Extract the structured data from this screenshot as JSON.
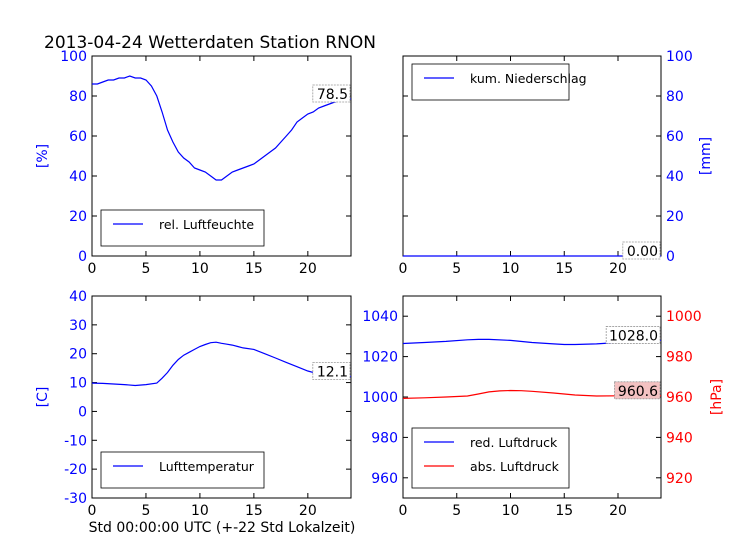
{
  "title": "2013-04-24 Wetterdaten Station RNON",
  "xlabel": "Std 00:00:00 UTC (+-22 Std Lokalzeit)",
  "colors": {
    "blue": "#0000ff",
    "red": "#ff0000",
    "axis": "#000000"
  },
  "chart_data": [
    {
      "type": "line",
      "panel": "top-left",
      "ylabel": "[%]",
      "xlim": [
        0,
        24
      ],
      "ylim": [
        0,
        100
      ],
      "xticks": [
        0,
        5,
        10,
        15,
        20
      ],
      "yticks": [
        0,
        20,
        40,
        60,
        80,
        100
      ],
      "axis_color": "blue",
      "legend": "lower-left",
      "series": [
        {
          "name": "rel. Luftfeuchte",
          "color": "blue",
          "x": [
            0,
            0.5,
            1,
            1.5,
            2,
            2.5,
            3,
            3.5,
            4,
            4.5,
            5,
            5.5,
            6,
            6.5,
            7,
            7.5,
            8,
            8.5,
            9,
            9.5,
            10,
            10.5,
            11,
            11.5,
            12,
            12.5,
            13,
            13.5,
            14,
            14.5,
            15,
            15.5,
            16,
            16.5,
            17,
            17.5,
            18,
            18.5,
            19,
            19.5,
            20,
            20.5,
            21,
            21.5,
            22,
            22.5,
            23,
            23.5,
            24
          ],
          "values": [
            86,
            86,
            87,
            88,
            88,
            89,
            89,
            90,
            89,
            89,
            88,
            85,
            80,
            72,
            63,
            57,
            52,
            49,
            47,
            44,
            43,
            42,
            40,
            38,
            38,
            40,
            42,
            43,
            44,
            45,
            46,
            48,
            50,
            52,
            54,
            57,
            60,
            63,
            67,
            69,
            71,
            72,
            74,
            75,
            76,
            77,
            78,
            78.5,
            78.5
          ]
        }
      ],
      "last_value_label": "78.5"
    },
    {
      "type": "line",
      "panel": "top-right",
      "ylabel": "[mm]",
      "xlim": [
        0,
        24
      ],
      "ylim": [
        0,
        100
      ],
      "xticks": [
        0,
        5,
        10,
        15,
        20
      ],
      "yticks": [
        0,
        20,
        40,
        60,
        80,
        100
      ],
      "axis_color": "blue",
      "legend": "upper-left",
      "series": [
        {
          "name": "kum. Niederschlag",
          "color": "blue",
          "x": [
            0,
            24
          ],
          "values": [
            0,
            0
          ]
        }
      ],
      "last_value_label": "0.00"
    },
    {
      "type": "line",
      "panel": "bottom-left",
      "ylabel": "[C]",
      "xlim": [
        0,
        24
      ],
      "ylim": [
        -30,
        40
      ],
      "xticks": [
        0,
        5,
        10,
        15,
        20
      ],
      "yticks": [
        -30,
        -20,
        -10,
        0,
        10,
        20,
        30,
        40
      ],
      "axis_color": "blue",
      "legend": "lower-left",
      "series": [
        {
          "name": "Lufttemperatur",
          "color": "blue",
          "x": [
            0,
            1,
            2,
            3,
            4,
            5,
            6,
            6.5,
            7,
            7.5,
            8,
            8.5,
            9,
            9.5,
            10,
            10.5,
            11,
            11.5,
            12,
            12.5,
            13,
            13.5,
            14,
            15,
            16,
            17,
            18,
            19,
            20,
            21,
            22,
            23,
            24
          ],
          "values": [
            9.8,
            9.7,
            9.5,
            9.3,
            9.0,
            9.3,
            9.8,
            11.5,
            13.5,
            16,
            18,
            19.5,
            20.5,
            21.5,
            22.5,
            23.2,
            23.8,
            24,
            23.6,
            23.3,
            23,
            22.5,
            22,
            21.5,
            20,
            18.5,
            17,
            15.5,
            14,
            13,
            12.5,
            12.1,
            12.1
          ]
        }
      ],
      "last_value_label": "12.1"
    },
    {
      "type": "line",
      "panel": "bottom-right",
      "ylabel": "[hPa]",
      "xlim": [
        0,
        24
      ],
      "ylim_left": [
        950,
        1050
      ],
      "ylim_right": [
        910,
        1010
      ],
      "xticks": [
        0,
        5,
        10,
        15,
        20
      ],
      "yticks_left": [
        960,
        980,
        1000,
        1020,
        1040
      ],
      "yticks_right": [
        920,
        940,
        960,
        980,
        1000
      ],
      "legend": "lower-left",
      "series": [
        {
          "name": "red. Luftdruck",
          "color": "blue",
          "axis": "left",
          "x": [
            0,
            2,
            4,
            6,
            7,
            8,
            10,
            12,
            14,
            15,
            16,
            18,
            20,
            22,
            24
          ],
          "values": [
            1026.5,
            1027,
            1027.5,
            1028.3,
            1028.5,
            1028.5,
            1028,
            1027,
            1026.3,
            1026,
            1026,
            1026.3,
            1027,
            1028,
            1028
          ]
        },
        {
          "name": "abs. Luftdruck",
          "color": "red",
          "axis": "right",
          "x": [
            0,
            2,
            4,
            6,
            7,
            8,
            9,
            10,
            11,
            12,
            14,
            16,
            18,
            20,
            22,
            24
          ],
          "values": [
            959.3,
            959.6,
            960,
            960.5,
            961.5,
            962.5,
            963,
            963.2,
            963.1,
            962.8,
            962,
            961,
            960.5,
            960.6,
            960.6,
            960.6
          ]
        }
      ],
      "last_value_labels": [
        "1028.0",
        "960.6"
      ]
    }
  ]
}
